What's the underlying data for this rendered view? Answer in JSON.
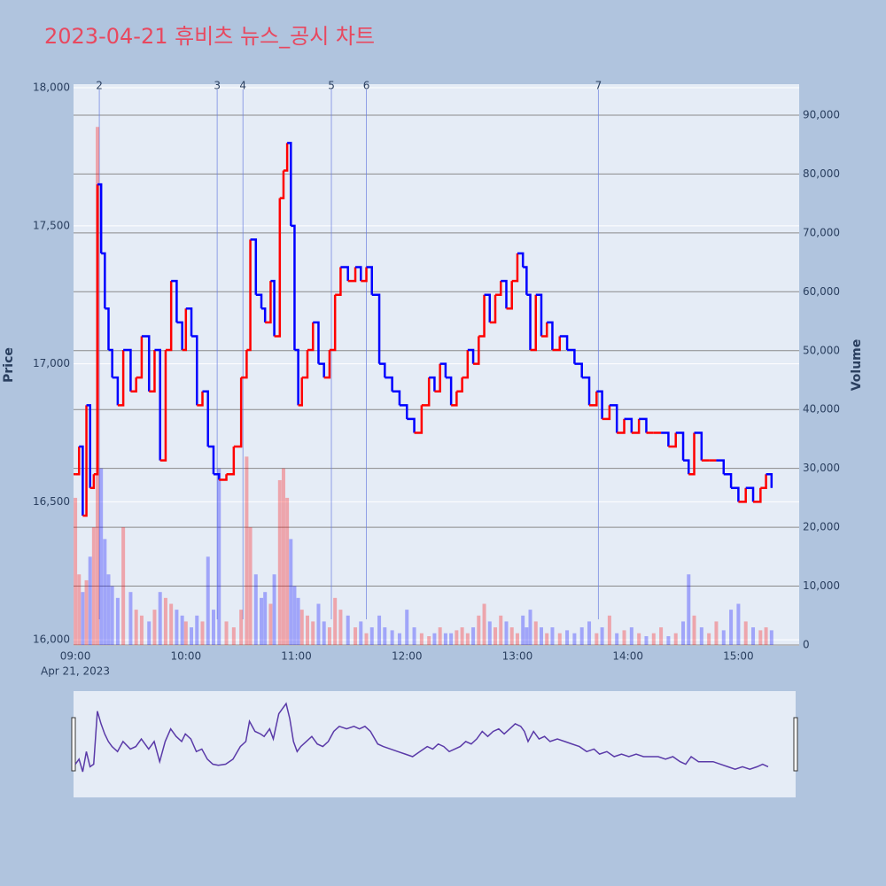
{
  "chart_data": {
    "type": "line",
    "title": "2023-04-21 휴비츠 뉴스_공시 차트",
    "x_date": "Apr 21, 2023",
    "ylabel": "Price",
    "y2label": "Volume",
    "up_color": "#ff0000",
    "down_color": "#0000ff",
    "xlim": [
      "08:59",
      "15:33"
    ],
    "xticks": [
      "09:00",
      "10:00",
      "11:00",
      "12:00",
      "13:00",
      "14:00",
      "15:00"
    ],
    "ylim": [
      15978,
      18013
    ],
    "yticks": [
      {
        "value": 16000,
        "label": "16,000"
      },
      {
        "value": 16500,
        "label": "16,500"
      },
      {
        "value": 17000,
        "label": "17,000"
      },
      {
        "value": 17500,
        "label": "17,500"
      },
      {
        "value": 18000,
        "label": "18,000"
      }
    ],
    "y2lim": [
      -150,
      95260
    ],
    "y2ticks": [
      0,
      {
        "value": 10000,
        "label": "10,000"
      },
      {
        "value": 20000,
        "label": "20,000"
      },
      {
        "value": 30000,
        "label": "30,000"
      },
      {
        "value": 40000,
        "label": "40,000"
      },
      {
        "value": 50000,
        "label": "50,000"
      },
      {
        "value": 60000,
        "label": "60,000"
      },
      {
        "value": 70000,
        "label": "70,000"
      },
      {
        "value": 80000,
        "label": "80,000"
      },
      {
        "value": 90000,
        "label": "90,000"
      }
    ],
    "annotations": [
      {
        "x": "09:13",
        "label": "2"
      },
      {
        "x": "10:17",
        "label": "3"
      },
      {
        "x": "10:31",
        "label": "4"
      },
      {
        "x": "11:19",
        "label": "5"
      },
      {
        "x": "11:38",
        "label": "6"
      },
      {
        "x": "13:44",
        "label": "7"
      }
    ],
    "x": [
      "09:00",
      "09:02",
      "09:04",
      "09:06",
      "09:08",
      "09:10",
      "09:12",
      "09:14",
      "09:16",
      "09:18",
      "09:20",
      "09:23",
      "09:26",
      "09:30",
      "09:33",
      "09:36",
      "09:40",
      "09:43",
      "09:46",
      "09:49",
      "09:52",
      "09:55",
      "09:58",
      "10:00",
      "10:03",
      "10:06",
      "10:09",
      "10:12",
      "10:15",
      "10:18",
      "10:22",
      "10:26",
      "10:30",
      "10:33",
      "10:35",
      "10:38",
      "10:41",
      "10:43",
      "10:46",
      "10:48",
      "10:51",
      "10:53",
      "10:55",
      "10:57",
      "10:59",
      "11:01",
      "11:03",
      "11:06",
      "11:09",
      "11:12",
      "11:15",
      "11:18",
      "11:21",
      "11:24",
      "11:28",
      "11:32",
      "11:35",
      "11:38",
      "11:41",
      "11:45",
      "11:48",
      "11:52",
      "11:56",
      "12:00",
      "12:04",
      "12:08",
      "12:12",
      "12:15",
      "12:18",
      "12:21",
      "12:24",
      "12:27",
      "12:30",
      "12:33",
      "12:36",
      "12:39",
      "12:42",
      "12:45",
      "12:48",
      "12:51",
      "12:54",
      "12:57",
      "13:00",
      "13:03",
      "13:05",
      "13:07",
      "13:10",
      "13:13",
      "13:16",
      "13:19",
      "13:23",
      "13:27",
      "13:31",
      "13:35",
      "13:39",
      "13:43",
      "13:46",
      "13:50",
      "13:54",
      "13:58",
      "14:02",
      "14:06",
      "14:10",
      "14:14",
      "14:18",
      "14:22",
      "14:26",
      "14:30",
      "14:33",
      "14:36",
      "14:40",
      "14:44",
      "14:48",
      "14:52",
      "14:56",
      "15:00",
      "15:04",
      "15:08",
      "15:12",
      "15:15",
      "15:18"
    ],
    "series": [
      {
        "axis": "y",
        "values": [
          16600,
          16700,
          16450,
          16850,
          16550,
          16600,
          17650,
          17400,
          17200,
          17050,
          16950,
          16850,
          17050,
          16900,
          16950,
          17100,
          16900,
          17050,
          16650,
          17050,
          17300,
          17150,
          17050,
          17200,
          17100,
          16850,
          16900,
          16700,
          16600,
          16580,
          16600,
          16700,
          16950,
          17050,
          17450,
          17250,
          17200,
          17150,
          17300,
          17100,
          17600,
          17700,
          17800,
          17500,
          17050,
          16850,
          16950,
          17050,
          17150,
          17000,
          16950,
          17050,
          17250,
          17350,
          17300,
          17350,
          17300,
          17350,
          17250,
          17000,
          16950,
          16900,
          16850,
          16800,
          16750,
          16850,
          16950,
          16900,
          17000,
          16950,
          16850,
          16900,
          16950,
          17050,
          17000,
          17100,
          17250,
          17150,
          17250,
          17300,
          17200,
          17300,
          17400,
          17350,
          17250,
          17050,
          17250,
          17100,
          17150,
          17050,
          17100,
          17050,
          17000,
          16950,
          16850,
          16900,
          16800,
          16850,
          16750,
          16800,
          16750,
          16800,
          16750,
          16750,
          16750,
          16700,
          16750,
          16650,
          16600,
          16750,
          16650,
          16650,
          16650,
          16600,
          16550,
          16500,
          16550,
          16500,
          16550,
          16600,
          16550
        ]
      },
      {
        "axis": "y2",
        "values": [
          25000,
          12000,
          9000,
          11000,
          15000,
          20000,
          88000,
          30000,
          18000,
          12000,
          10000,
          8000,
          20000,
          9000,
          6000,
          5000,
          4000,
          6000,
          9000,
          8000,
          7000,
          6000,
          5000,
          4000,
          3000,
          5000,
          4000,
          15000,
          6000,
          30000,
          4000,
          3000,
          6000,
          32000,
          20000,
          12000,
          8000,
          9000,
          7000,
          12000,
          28000,
          30000,
          25000,
          18000,
          10000,
          8000,
          6000,
          5000,
          4000,
          7000,
          4000,
          3000,
          8000,
          6000,
          5000,
          3000,
          4000,
          2000,
          3000,
          5000,
          3000,
          2500,
          2000,
          6000,
          3000,
          2000,
          1500,
          2000,
          3000,
          2000,
          2000,
          2500,
          3000,
          2000,
          3000,
          5000,
          7000,
          4000,
          3000,
          5000,
          4000,
          3000,
          2000,
          5000,
          3000,
          6000,
          4000,
          3000,
          2000,
          3000,
          2000,
          2500,
          2000,
          3000,
          4000,
          2000,
          3000,
          5000,
          2000,
          2500,
          3000,
          2000,
          1500,
          2000,
          3000,
          1500,
          2000,
          4000,
          12000,
          5000,
          3000,
          2000,
          4000,
          2500,
          6000,
          7000,
          4000,
          3000,
          2500,
          3000,
          2500
        ]
      }
    ]
  }
}
